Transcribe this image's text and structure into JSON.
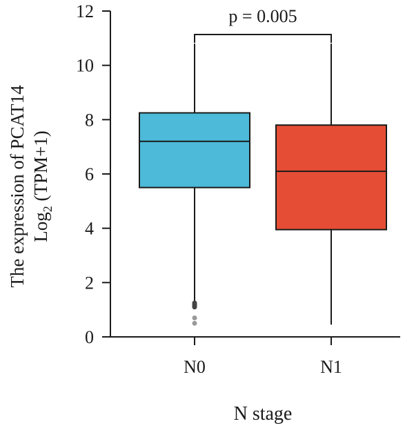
{
  "chart_data": {
    "type": "boxplot",
    "xlabel": "N stage",
    "ylabel_line1": "The expression of PCAT14",
    "ylabel_line2_prefix": "Log",
    "ylabel_line2_sub": "2",
    "ylabel_line2_suffix": " (TPM+1)",
    "ylim": [
      0,
      12
    ],
    "yticks": [
      0,
      2,
      4,
      6,
      8,
      10,
      12
    ],
    "categories": [
      "N0",
      "N1"
    ],
    "boxes": [
      {
        "category": "N0",
        "color": "#4CBAD8",
        "whisker_low": 1.3,
        "q1": 5.5,
        "median": 7.2,
        "q3": 8.25,
        "whisker_high": 10.8,
        "outliers": [
          1.1,
          1.15,
          1.2,
          1.25,
          0.7,
          0.5
        ]
      },
      {
        "category": "N1",
        "color": "#E54E35",
        "whisker_low": 0.45,
        "q1": 3.95,
        "median": 6.1,
        "q3": 7.8,
        "whisker_high": 10.8,
        "outliers": []
      }
    ],
    "annotation": {
      "text": "p = 0.005",
      "y_bracket": 11.2
    },
    "grid": false,
    "legend": "none"
  }
}
